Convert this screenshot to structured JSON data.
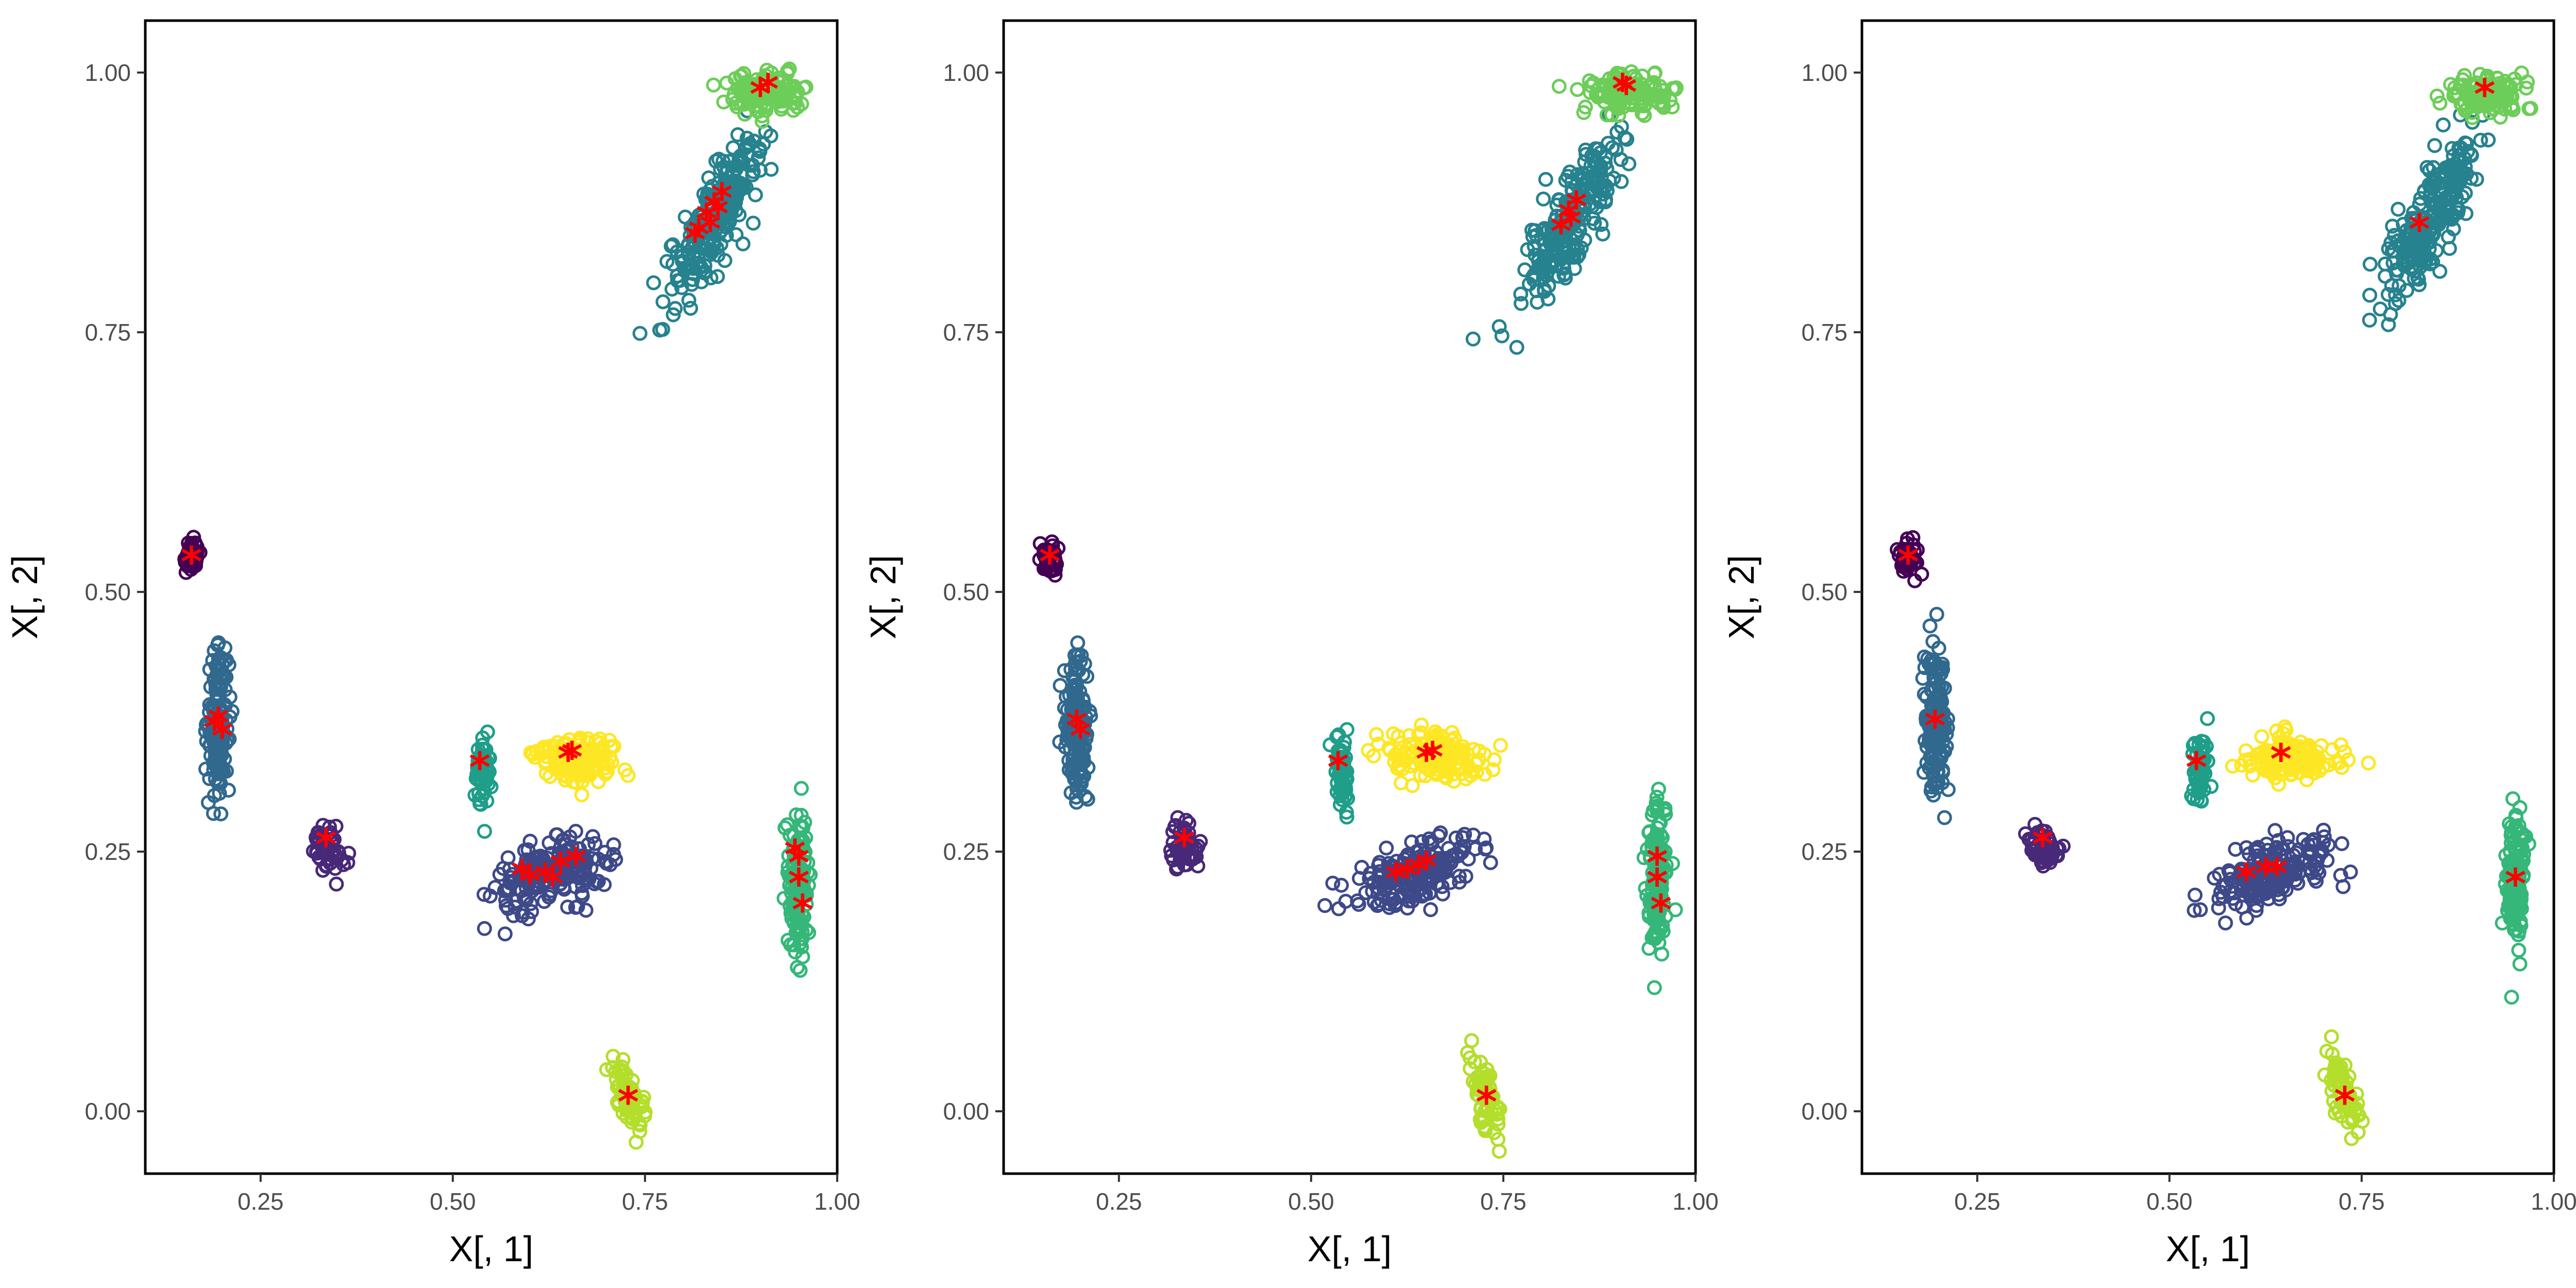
{
  "chart_data": [
    {
      "type": "scatter",
      "xlabel": "X[, 1]",
      "ylabel": "X[, 2]",
      "xlim": [
        0.1,
        1.0
      ],
      "ylim": [
        -0.06,
        1.05
      ],
      "x_ticks": [
        0.25,
        0.5,
        0.75,
        1.0
      ],
      "x_tick_labels": [
        "0.25",
        "0.50",
        "0.75",
        "1.00"
      ],
      "y_ticks": [
        0.0,
        0.25,
        0.5,
        0.75,
        1.0
      ],
      "y_tick_labels": [
        "0.00",
        "0.25",
        "0.50",
        "0.75",
        "1.00"
      ],
      "grid": false,
      "marker_style": "open circles",
      "clusters": [
        {
          "color": "#440154",
          "center": [
            0.16,
            0.533
          ],
          "spread": [
            0.006,
            0.008
          ],
          "n": 45,
          "rot": 0
        },
        {
          "color": "#482878",
          "center": [
            0.335,
            0.255
          ],
          "spread": [
            0.01,
            0.012
          ],
          "n": 55,
          "rot": 0.9
        },
        {
          "color": "#3E4989",
          "center": [
            0.63,
            0.228
          ],
          "spread": [
            0.038,
            0.014
          ],
          "n": 200,
          "rot": 0.25
        },
        {
          "color": "#31688E",
          "center": [
            0.195,
            0.375
          ],
          "spread": [
            0.007,
            0.034
          ],
          "n": 160,
          "rot": 0
        },
        {
          "color": "#26828E",
          "center": [
            0.84,
            0.86
          ],
          "spread": [
            0.05,
            0.015
          ],
          "n": 240,
          "rot": 0.95
        },
        {
          "color": "#1F9E89",
          "center": [
            0.54,
            0.33
          ],
          "spread": [
            0.005,
            0.018
          ],
          "n": 60,
          "rot": 0
        },
        {
          "color": "#35B779",
          "center": [
            0.95,
            0.22
          ],
          "spread": [
            0.006,
            0.034
          ],
          "n": 140,
          "rot": 0
        },
        {
          "color": "#6DCD59",
          "center": [
            0.91,
            0.98
          ],
          "spread": [
            0.026,
            0.009
          ],
          "n": 130,
          "rot": 0
        },
        {
          "color": "#B4DE2C",
          "center": [
            0.728,
            0.015
          ],
          "spread": [
            0.007,
            0.02
          ],
          "n": 70,
          "rot": 0.4
        },
        {
          "color": "#FDE725",
          "center": [
            0.66,
            0.34
          ],
          "spread": [
            0.028,
            0.011
          ],
          "n": 150,
          "rot": 0
        }
      ],
      "center_markers": [
        [
          0.16,
          0.53
        ],
        [
          0.335,
          0.258
        ],
        [
          0.195,
          0.375
        ],
        [
          0.2,
          0.362
        ],
        [
          0.19,
          0.37
        ],
        [
          0.535,
          0.332
        ],
        [
          0.65,
          0.34
        ],
        [
          0.655,
          0.342
        ],
        [
          0.6,
          0.222
        ],
        [
          0.62,
          0.225
        ],
        [
          0.64,
          0.235
        ],
        [
          0.66,
          0.24
        ],
        [
          0.59,
          0.228
        ],
        [
          0.63,
          0.22
        ],
        [
          0.95,
          0.24
        ],
        [
          0.95,
          0.22
        ],
        [
          0.955,
          0.195
        ],
        [
          0.945,
          0.248
        ],
        [
          0.728,
          0.01
        ],
        [
          0.91,
          0.985
        ],
        [
          0.9,
          0.98
        ],
        [
          0.82,
          0.845
        ],
        [
          0.83,
          0.86
        ],
        [
          0.84,
          0.87
        ],
        [
          0.85,
          0.88
        ],
        [
          0.815,
          0.84
        ],
        [
          0.845,
          0.865
        ],
        [
          0.835,
          0.85
        ]
      ]
    },
    {
      "type": "scatter",
      "xlabel": "X[, 1]",
      "ylabel": "X[, 2]",
      "xlim": [
        0.1,
        1.0
      ],
      "ylim": [
        -0.06,
        1.05
      ],
      "x_ticks": [
        0.25,
        0.5,
        0.75,
        1.0
      ],
      "x_tick_labels": [
        "0.25",
        "0.50",
        "0.75",
        "1.00"
      ],
      "y_ticks": [
        0.0,
        0.25,
        0.5,
        0.75,
        1.0
      ],
      "y_tick_labels": [
        "0.00",
        "0.25",
        "0.50",
        "0.75",
        "1.00"
      ],
      "grid": false,
      "marker_style": "open circles",
      "clusters": [
        {
          "color": "#440154",
          "center": [
            0.16,
            0.533
          ],
          "spread": [
            0.006,
            0.008
          ],
          "n": 45,
          "rot": 0
        },
        {
          "color": "#482878",
          "center": [
            0.335,
            0.255
          ],
          "spread": [
            0.01,
            0.012
          ],
          "n": 55,
          "rot": 0.9
        },
        {
          "color": "#3E4989",
          "center": [
            0.63,
            0.228
          ],
          "spread": [
            0.038,
            0.014
          ],
          "n": 200,
          "rot": 0.25
        },
        {
          "color": "#31688E",
          "center": [
            0.195,
            0.375
          ],
          "spread": [
            0.007,
            0.034
          ],
          "n": 160,
          "rot": 0
        },
        {
          "color": "#26828E",
          "center": [
            0.84,
            0.86
          ],
          "spread": [
            0.05,
            0.015
          ],
          "n": 240,
          "rot": 0.95
        },
        {
          "color": "#1F9E89",
          "center": [
            0.54,
            0.33
          ],
          "spread": [
            0.005,
            0.018
          ],
          "n": 60,
          "rot": 0
        },
        {
          "color": "#35B779",
          "center": [
            0.95,
            0.22
          ],
          "spread": [
            0.006,
            0.034
          ],
          "n": 140,
          "rot": 0
        },
        {
          "color": "#6DCD59",
          "center": [
            0.91,
            0.98
          ],
          "spread": [
            0.026,
            0.009
          ],
          "n": 130,
          "rot": 0
        },
        {
          "color": "#B4DE2C",
          "center": [
            0.728,
            0.015
          ],
          "spread": [
            0.007,
            0.02
          ],
          "n": 70,
          "rot": 0.4
        },
        {
          "color": "#FDE725",
          "center": [
            0.66,
            0.34
          ],
          "spread": [
            0.028,
            0.011
          ],
          "n": 150,
          "rot": 0
        }
      ],
      "center_markers": [
        [
          0.16,
          0.53
        ],
        [
          0.335,
          0.258
        ],
        [
          0.195,
          0.372
        ],
        [
          0.2,
          0.362
        ],
        [
          0.535,
          0.332
        ],
        [
          0.65,
          0.34
        ],
        [
          0.658,
          0.342
        ],
        [
          0.61,
          0.225
        ],
        [
          0.625,
          0.228
        ],
        [
          0.64,
          0.232
        ],
        [
          0.65,
          0.236
        ],
        [
          0.95,
          0.24
        ],
        [
          0.95,
          0.22
        ],
        [
          0.955,
          0.195
        ],
        [
          0.728,
          0.01
        ],
        [
          0.905,
          0.985
        ],
        [
          0.91,
          0.982
        ],
        [
          0.825,
          0.848
        ],
        [
          0.835,
          0.862
        ],
        [
          0.845,
          0.872
        ],
        [
          0.838,
          0.855
        ]
      ]
    },
    {
      "type": "scatter",
      "xlabel": "X[, 1]",
      "ylabel": "X[, 2]",
      "xlim": [
        0.1,
        1.0
      ],
      "ylim": [
        -0.06,
        1.05
      ],
      "x_ticks": [
        0.25,
        0.5,
        0.75,
        1.0
      ],
      "x_tick_labels": [
        "0.25",
        "0.50",
        "0.75",
        "1.00"
      ],
      "y_ticks": [
        0.0,
        0.25,
        0.5,
        0.75,
        1.0
      ],
      "y_tick_labels": [
        "0.00",
        "0.25",
        "0.50",
        "0.75",
        "1.00"
      ],
      "grid": false,
      "marker_style": "open circles",
      "clusters": [
        {
          "color": "#440154",
          "center": [
            0.16,
            0.533
          ],
          "spread": [
            0.006,
            0.008
          ],
          "n": 45,
          "rot": 0
        },
        {
          "color": "#482878",
          "center": [
            0.335,
            0.255
          ],
          "spread": [
            0.01,
            0.012
          ],
          "n": 55,
          "rot": 0.9
        },
        {
          "color": "#3E4989",
          "center": [
            0.63,
            0.228
          ],
          "spread": [
            0.038,
            0.014
          ],
          "n": 200,
          "rot": 0.25
        },
        {
          "color": "#31688E",
          "center": [
            0.195,
            0.375
          ],
          "spread": [
            0.007,
            0.034
          ],
          "n": 160,
          "rot": 0
        },
        {
          "color": "#26828E",
          "center": [
            0.84,
            0.86
          ],
          "spread": [
            0.05,
            0.015
          ],
          "n": 240,
          "rot": 0.95
        },
        {
          "color": "#1F9E89",
          "center": [
            0.54,
            0.33
          ],
          "spread": [
            0.005,
            0.018
          ],
          "n": 60,
          "rot": 0
        },
        {
          "color": "#35B779",
          "center": [
            0.95,
            0.22
          ],
          "spread": [
            0.006,
            0.034
          ],
          "n": 140,
          "rot": 0
        },
        {
          "color": "#6DCD59",
          "center": [
            0.91,
            0.98
          ],
          "spread": [
            0.026,
            0.009
          ],
          "n": 130,
          "rot": 0
        },
        {
          "color": "#B4DE2C",
          "center": [
            0.728,
            0.015
          ],
          "spread": [
            0.007,
            0.02
          ],
          "n": 70,
          "rot": 0.4
        },
        {
          "color": "#FDE725",
          "center": [
            0.66,
            0.34
          ],
          "spread": [
            0.028,
            0.011
          ],
          "n": 150,
          "rot": 0
        }
      ],
      "center_markers": [
        [
          0.16,
          0.53
        ],
        [
          0.335,
          0.258
        ],
        [
          0.195,
          0.372
        ],
        [
          0.535,
          0.332
        ],
        [
          0.645,
          0.34
        ],
        [
          0.6,
          0.225
        ],
        [
          0.625,
          0.23
        ],
        [
          0.64,
          0.23
        ],
        [
          0.95,
          0.22
        ],
        [
          0.728,
          0.01
        ],
        [
          0.91,
          0.98
        ],
        [
          0.825,
          0.85
        ]
      ]
    }
  ]
}
